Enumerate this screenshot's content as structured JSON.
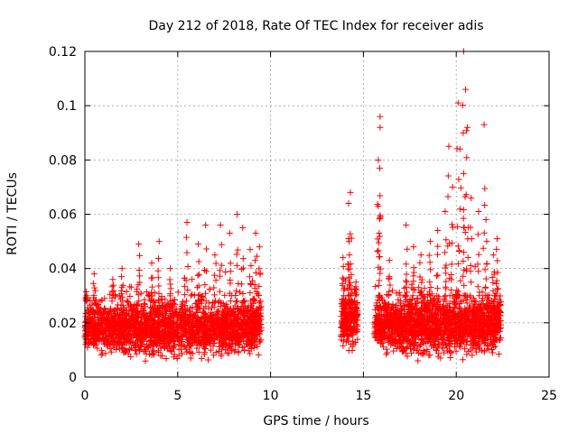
{
  "chart_data": {
    "type": "scatter",
    "title": "Day 212 of 2018, Rate Of TEC Index for receiver adis",
    "xlabel": "GPS time / hours",
    "ylabel": "ROTI / TECUs",
    "xlim": [
      0,
      25
    ],
    "ylim": [
      0,
      0.12
    ],
    "xticks": [
      0,
      5,
      10,
      15,
      20,
      25
    ],
    "xtick_labels": [
      "0",
      "5",
      "10",
      "15",
      "20",
      "25"
    ],
    "yticks": [
      0,
      0.02,
      0.04,
      0.06,
      0.08,
      0.1,
      0.12
    ],
    "ytick_labels": [
      "0",
      "0.02",
      "0.04",
      "0.06",
      "0.08",
      "0.1",
      "0.12"
    ],
    "grid": true,
    "marker": "plus",
    "series": [
      {
        "name": "ROTI",
        "color": "#ff0000",
        "segments": [
          {
            "x_start": 0.0,
            "x_end": 9.5,
            "typical_min": 0.005,
            "typical_max": 0.028,
            "peaks": [
              [
                0.1,
                0.03
              ],
              [
                0.5,
                0.038
              ],
              [
                1.5,
                0.036
              ],
              [
                2.0,
                0.04
              ],
              [
                2.9,
                0.049
              ],
              [
                3.6,
                0.042
              ],
              [
                4.0,
                0.05
              ],
              [
                4.6,
                0.04
              ],
              [
                5.5,
                0.057
              ],
              [
                6.1,
                0.049
              ],
              [
                6.5,
                0.056
              ],
              [
                7.0,
                0.045
              ],
              [
                7.3,
                0.056
              ],
              [
                7.8,
                0.053
              ],
              [
                8.2,
                0.06
              ],
              [
                8.5,
                0.055
              ],
              [
                8.9,
                0.047
              ],
              [
                9.2,
                0.053
              ],
              [
                9.4,
                0.048
              ]
            ]
          },
          {
            "x_start": 13.8,
            "x_end": 14.7,
            "typical_min": 0.008,
            "typical_max": 0.03,
            "peaks": [
              [
                13.9,
                0.044
              ],
              [
                14.3,
                0.068
              ],
              [
                14.2,
                0.064
              ],
              [
                14.2,
                0.051
              ],
              [
                14.6,
                0.035
              ]
            ]
          },
          {
            "x_start": 15.6,
            "x_end": 22.4,
            "typical_min": 0.005,
            "typical_max": 0.03,
            "peaks": [
              [
                15.9,
                0.096
              ],
              [
                15.9,
                0.092
              ],
              [
                15.8,
                0.08
              ],
              [
                15.8,
                0.063
              ],
              [
                16.4,
                0.043
              ],
              [
                17.3,
                0.056
              ],
              [
                17.7,
                0.048
              ],
              [
                18.1,
                0.045
              ],
              [
                18.6,
                0.05
              ],
              [
                19.0,
                0.054
              ],
              [
                19.4,
                0.061
              ],
              [
                19.6,
                0.085
              ],
              [
                19.8,
                0.07
              ],
              [
                20.1,
                0.101
              ],
              [
                20.2,
                0.084
              ],
              [
                20.4,
                0.075
              ],
              [
                20.4,
                0.12
              ],
              [
                20.5,
                0.106
              ],
              [
                20.6,
                0.092
              ],
              [
                20.8,
                0.066
              ],
              [
                21.2,
                0.061
              ],
              [
                21.5,
                0.093
              ],
              [
                21.6,
                0.058
              ],
              [
                22.0,
                0.045
              ],
              [
                22.2,
                0.051
              ]
            ]
          }
        ]
      }
    ]
  }
}
